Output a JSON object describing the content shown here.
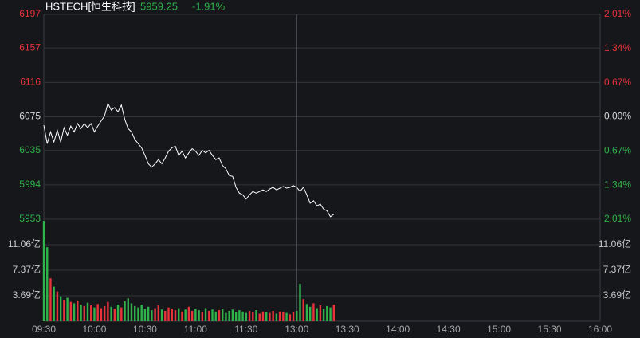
{
  "chart_data": [
    {
      "type": "line",
      "title": "HSTECH[恒生科技]",
      "last_price": 5959.25,
      "change": "-1.91%",
      "x": [
        0,
        2,
        4,
        6,
        8,
        10,
        12,
        14,
        16,
        18,
        20,
        22,
        24,
        26,
        28,
        30,
        32,
        34,
        36,
        38,
        40,
        42,
        44,
        46,
        48,
        50,
        52,
        54,
        56,
        58,
        60,
        62,
        64,
        66,
        68,
        70,
        72,
        74,
        76,
        78,
        80,
        82,
        84,
        86,
        88,
        90,
        92,
        94,
        96,
        98,
        100,
        102,
        104,
        106,
        108,
        110,
        112,
        114,
        116,
        118,
        120,
        122,
        124,
        126,
        128,
        130,
        132,
        134,
        136,
        138,
        140,
        142,
        144,
        146,
        148,
        150,
        152,
        154,
        156,
        158,
        160,
        162,
        164,
        166,
        168,
        170,
        172
      ],
      "series": [
        {
          "color": "#ffffff",
          "values": [
            6065,
            6043,
            6057,
            6045,
            6059,
            6045,
            6062,
            6053,
            6064,
            6057,
            6067,
            6061,
            6067,
            6062,
            6067,
            6057,
            6064,
            6070,
            6076,
            6091,
            6083,
            6086,
            6081,
            6089,
            6072,
            6061,
            6057,
            6048,
            6043,
            6038,
            6029,
            6019,
            6015,
            6019,
            6024,
            6019,
            6026,
            6034,
            6038,
            6040,
            6029,
            6034,
            6026,
            6032,
            6037,
            6034,
            6029,
            6035,
            6032,
            6035,
            6029,
            6024,
            6026,
            6017,
            6013,
            6005,
            6004,
            5991,
            5984,
            5982,
            5977,
            5982,
            5986,
            5984,
            5986,
            5988,
            5986,
            5989,
            5991,
            5988,
            5990,
            5992,
            5990,
            5991,
            5993,
            5991,
            5986,
            5991,
            5982,
            5972,
            5975,
            5969,
            5971,
            5965,
            5963,
            5956,
            5959
          ]
        }
      ],
      "xlim": [
        0,
        330
      ],
      "ylim": [
        5953,
        6197
      ],
      "yticks": [
        6197,
        6157,
        6116,
        6075,
        6035,
        5994,
        5953
      ],
      "y2lim": [
        -2.01,
        2.01
      ],
      "y2ticks": [
        {
          "value": 2.01,
          "label": "2.01%"
        },
        {
          "value": 1.34,
          "label": "1.34%"
        },
        {
          "value": 0.67,
          "label": "0.67%"
        },
        {
          "value": 0,
          "label": "0.00%"
        },
        {
          "value": -0.67,
          "label": "0.67%"
        },
        {
          "value": -1.34,
          "label": "1.34%"
        },
        {
          "value": -2.01,
          "label": "2.01%"
        }
      ],
      "grid": true,
      "up_color": "#e8333b",
      "down_color": "#2fb34a"
    },
    {
      "type": "bar",
      "x": [
        0,
        2,
        4,
        6,
        8,
        10,
        12,
        14,
        16,
        18,
        20,
        22,
        24,
        26,
        28,
        30,
        32,
        34,
        36,
        38,
        40,
        42,
        44,
        46,
        48,
        50,
        52,
        54,
        56,
        58,
        60,
        62,
        64,
        66,
        68,
        70,
        72,
        74,
        76,
        78,
        80,
        82,
        84,
        86,
        88,
        90,
        92,
        94,
        96,
        98,
        100,
        102,
        104,
        106,
        108,
        110,
        112,
        114,
        116,
        118,
        120,
        122,
        124,
        126,
        128,
        130,
        132,
        134,
        136,
        138,
        140,
        142,
        144,
        146,
        148,
        150,
        152,
        154,
        156,
        158,
        160,
        162,
        164,
        166,
        168,
        170,
        172
      ],
      "values": [
        14.5,
        10.7,
        6.2,
        5.0,
        4.3,
        3.6,
        3.1,
        3.4,
        2.8,
        2.6,
        3.0,
        2.4,
        2.2,
        2.7,
        2.3,
        2.0,
        2.5,
        1.9,
        2.2,
        2.8,
        2.1,
        1.8,
        2.4,
        2.0,
        2.9,
        3.3,
        2.6,
        2.2,
        2.0,
        2.4,
        1.8,
        2.1,
        1.6,
        1.9,
        2.3,
        1.7,
        1.5,
        2.0,
        1.8,
        1.6,
        1.9,
        1.4,
        1.7,
        2.1,
        1.5,
        1.8,
        1.6,
        1.3,
        1.9,
        1.5,
        1.7,
        1.4,
        1.6,
        1.8,
        1.2,
        1.5,
        1.7,
        1.3,
        1.6,
        1.4,
        1.2,
        1.5,
        1.3,
        1.6,
        1.1,
        1.4,
        1.3,
        1.2,
        1.5,
        1.1,
        1.4,
        1.3,
        1.2,
        1.0,
        1.3,
        1.5,
        5.4,
        3.2,
        2.5,
        2.1,
        2.6,
        1.9,
        2.3,
        1.8,
        2.2,
        2.0,
        2.4
      ],
      "xlim": [
        0,
        330
      ],
      "xticks": [
        {
          "value": 0,
          "label": "09:30"
        },
        {
          "value": 30,
          "label": "10:00"
        },
        {
          "value": 60,
          "label": "10:30"
        },
        {
          "value": 90,
          "label": "11:00"
        },
        {
          "value": 120,
          "label": "11:30"
        },
        {
          "value": 150,
          "label": "13:00"
        },
        {
          "value": 180,
          "label": "13:30"
        },
        {
          "value": 210,
          "label": "14:00"
        },
        {
          "value": 240,
          "label": "14:30"
        },
        {
          "value": 270,
          "label": "15:00"
        },
        {
          "value": 300,
          "label": "15:30"
        },
        {
          "value": 330,
          "label": "16:00"
        }
      ],
      "ylim": [
        0,
        14.75
      ],
      "yticks": [
        {
          "value": 11.06,
          "label": "11.06亿"
        },
        {
          "value": 7.37,
          "label": "7.37亿"
        },
        {
          "value": 3.69,
          "label": "3.69亿"
        }
      ],
      "grid": true
    }
  ]
}
